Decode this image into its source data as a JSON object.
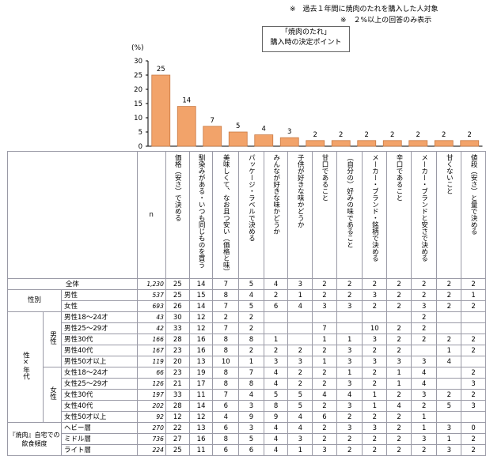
{
  "notes": {
    "line1": "※　過去１年間に焼肉のたれを購入した人対象",
    "line2": "※　２%以上の回答のみ表示"
  },
  "chart_data": {
    "type": "bar",
    "title_line1": "「焼肉のたれ」",
    "title_line2": "購入時の決定ポイント",
    "ylabel": "(%)",
    "ylim": [
      0,
      30
    ],
    "yticks": [
      0,
      5,
      10,
      15,
      20,
      25,
      30
    ],
    "bar_color": "#f2a36a",
    "categories": [
      "価格（安さ）で決める",
      "馴染みがある・いつも同じものを買う",
      "美味しくて、なお且つ安い（価格と味）",
      "パッケージ・ラベルで決める",
      "みんなが好きな味かどうか",
      "子供が好きな味かどうか",
      "甘口であること",
      "（自分の）好みの味であること",
      "メーカー・ブランド・銘柄で決める",
      "辛口であること",
      "メーカー・ブランドと安さで決める",
      "甘くないこと",
      "値段（安さ）と量で決める"
    ],
    "values": [
      25,
      14,
      7,
      5,
      4,
      3,
      2,
      2,
      2,
      2,
      2,
      2,
      2
    ]
  },
  "table": {
    "n_header": "n",
    "rows": [
      {
        "group": "",
        "sub": "",
        "label": "全体",
        "n": "1,230",
        "vals": [
          "25",
          "14",
          "7",
          "5",
          "4",
          "3",
          "2",
          "2",
          "2",
          "2",
          "2",
          "2",
          "2"
        ]
      },
      {
        "group": "性別",
        "sub": "",
        "label": "男性",
        "n": "537",
        "vals": [
          "25",
          "15",
          "8",
          "4",
          "2",
          "1",
          "2",
          "2",
          "3",
          "2",
          "2",
          "2",
          "1"
        ]
      },
      {
        "group": "",
        "sub": "",
        "label": "女性",
        "n": "693",
        "vals": [
          "26",
          "14",
          "7",
          "5",
          "6",
          "4",
          "3",
          "3",
          "2",
          "2",
          "3",
          "2",
          "2"
        ]
      },
      {
        "group": "性×年代",
        "sub": "男性",
        "label": "男性18～24才",
        "n": "43",
        "vals": [
          "30",
          "12",
          "2",
          "2",
          "",
          "",
          "",
          "",
          "",
          "",
          "2",
          "",
          ""
        ]
      },
      {
        "group": "",
        "sub": "",
        "label": "男性25～29才",
        "n": "42",
        "vals": [
          "33",
          "12",
          "7",
          "2",
          "",
          "",
          "7",
          "",
          "10",
          "2",
          "2",
          "",
          ""
        ]
      },
      {
        "group": "",
        "sub": "",
        "label": "男性30代",
        "n": "166",
        "vals": [
          "28",
          "16",
          "8",
          "8",
          "1",
          "",
          "1",
          "1",
          "3",
          "2",
          "2",
          "2",
          "2"
        ]
      },
      {
        "group": "",
        "sub": "",
        "label": "男性40代",
        "n": "167",
        "vals": [
          "23",
          "16",
          "8",
          "2",
          "2",
          "2",
          "2",
          "3",
          "2",
          "2",
          "",
          "1",
          "2"
        ]
      },
      {
        "group": "",
        "sub": "",
        "label": "男性50才以上",
        "n": "119",
        "vals": [
          "20",
          "13",
          "10",
          "1",
          "3",
          "3",
          "1",
          "3",
          "3",
          "3",
          "3",
          "4",
          ""
        ]
      },
      {
        "group": "",
        "sub": "女性",
        "label": "女性18～24才",
        "n": "66",
        "vals": [
          "23",
          "19",
          "8",
          "7",
          "4",
          "2",
          "2",
          "1",
          "2",
          "1",
          "4",
          "",
          "2"
        ]
      },
      {
        "group": "",
        "sub": "",
        "label": "女性25～29才",
        "n": "126",
        "vals": [
          "21",
          "17",
          "8",
          "8",
          "4",
          "2",
          "2",
          "3",
          "2",
          "1",
          "4",
          "",
          "3"
        ]
      },
      {
        "group": "",
        "sub": "",
        "label": "女性30代",
        "n": "197",
        "vals": [
          "33",
          "11",
          "7",
          "4",
          "5",
          "5",
          "4",
          "4",
          "1",
          "2",
          "3",
          "2",
          "2"
        ]
      },
      {
        "group": "",
        "sub": "",
        "label": "女性40代",
        "n": "202",
        "vals": [
          "28",
          "14",
          "6",
          "3",
          "8",
          "5",
          "2",
          "3",
          "1",
          "4",
          "2",
          "5",
          "3"
        ]
      },
      {
        "group": "",
        "sub": "",
        "label": "女性50才以上",
        "n": "92",
        "vals": [
          "12",
          "12",
          "4",
          "9",
          "9",
          "4",
          "6",
          "2",
          "2",
          "2",
          "1",
          "",
          ""
        ]
      },
      {
        "group": "『焼肉』自宅での飲食頻度",
        "sub": "",
        "label": "ヘビー層",
        "n": "270",
        "vals": [
          "22",
          "13",
          "6",
          "3",
          "4",
          "4",
          "2",
          "3",
          "3",
          "2",
          "1",
          "3",
          "0"
        ]
      },
      {
        "group": "",
        "sub": "",
        "label": "ミドル層",
        "n": "736",
        "vals": [
          "27",
          "16",
          "8",
          "5",
          "4",
          "3",
          "2",
          "2",
          "2",
          "2",
          "3",
          "1",
          "2"
        ]
      },
      {
        "group": "",
        "sub": "",
        "label": "ライト層",
        "n": "224",
        "vals": [
          "25",
          "11",
          "6",
          "6",
          "4",
          "1",
          "3",
          "2",
          "2",
          "2",
          "2",
          "3",
          "2"
        ]
      }
    ]
  }
}
